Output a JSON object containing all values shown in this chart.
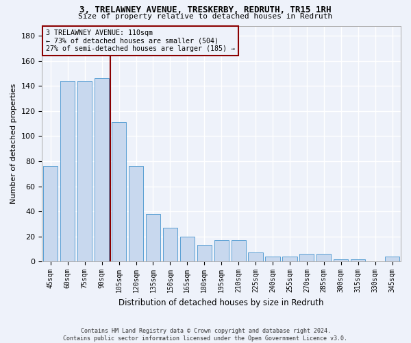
{
  "title1": "3, TRELAWNEY AVENUE, TRESKERBY, REDRUTH, TR15 1RH",
  "title2": "Size of property relative to detached houses in Redruth",
  "xlabel": "Distribution of detached houses by size in Redruth",
  "ylabel": "Number of detached properties",
  "categories": [
    "45sqm",
    "60sqm",
    "75sqm",
    "90sqm",
    "105sqm",
    "120sqm",
    "135sqm",
    "150sqm",
    "165sqm",
    "180sqm",
    "195sqm",
    "210sqm",
    "225sqm",
    "240sqm",
    "255sqm",
    "270sqm",
    "285sqm",
    "300sqm",
    "315sqm",
    "330sqm",
    "345sqm"
  ],
  "values": [
    76,
    144,
    144,
    146,
    111,
    76,
    38,
    27,
    20,
    13,
    17,
    17,
    7,
    4,
    4,
    6,
    6,
    2,
    2,
    0,
    4
  ],
  "bar_color": "#c8d8ee",
  "bar_edge_color": "#5a9fd4",
  "vline_color": "#8b0000",
  "vline_position": 3.5,
  "ylim": [
    0,
    188
  ],
  "yticks": [
    0,
    20,
    40,
    60,
    80,
    100,
    120,
    140,
    160,
    180
  ],
  "ann_line1": "3 TRELAWNEY AVENUE: 110sqm",
  "ann_line2": "← 73% of detached houses are smaller (504)",
  "ann_line3": "27% of semi-detached houses are larger (185) →",
  "footer_line1": "Contains HM Land Registry data © Crown copyright and database right 2024.",
  "footer_line2": "Contains public sector information licensed under the Open Government Licence v3.0.",
  "background_color": "#eef2fa",
  "grid_color": "#d8dde8",
  "bar_width": 0.85
}
